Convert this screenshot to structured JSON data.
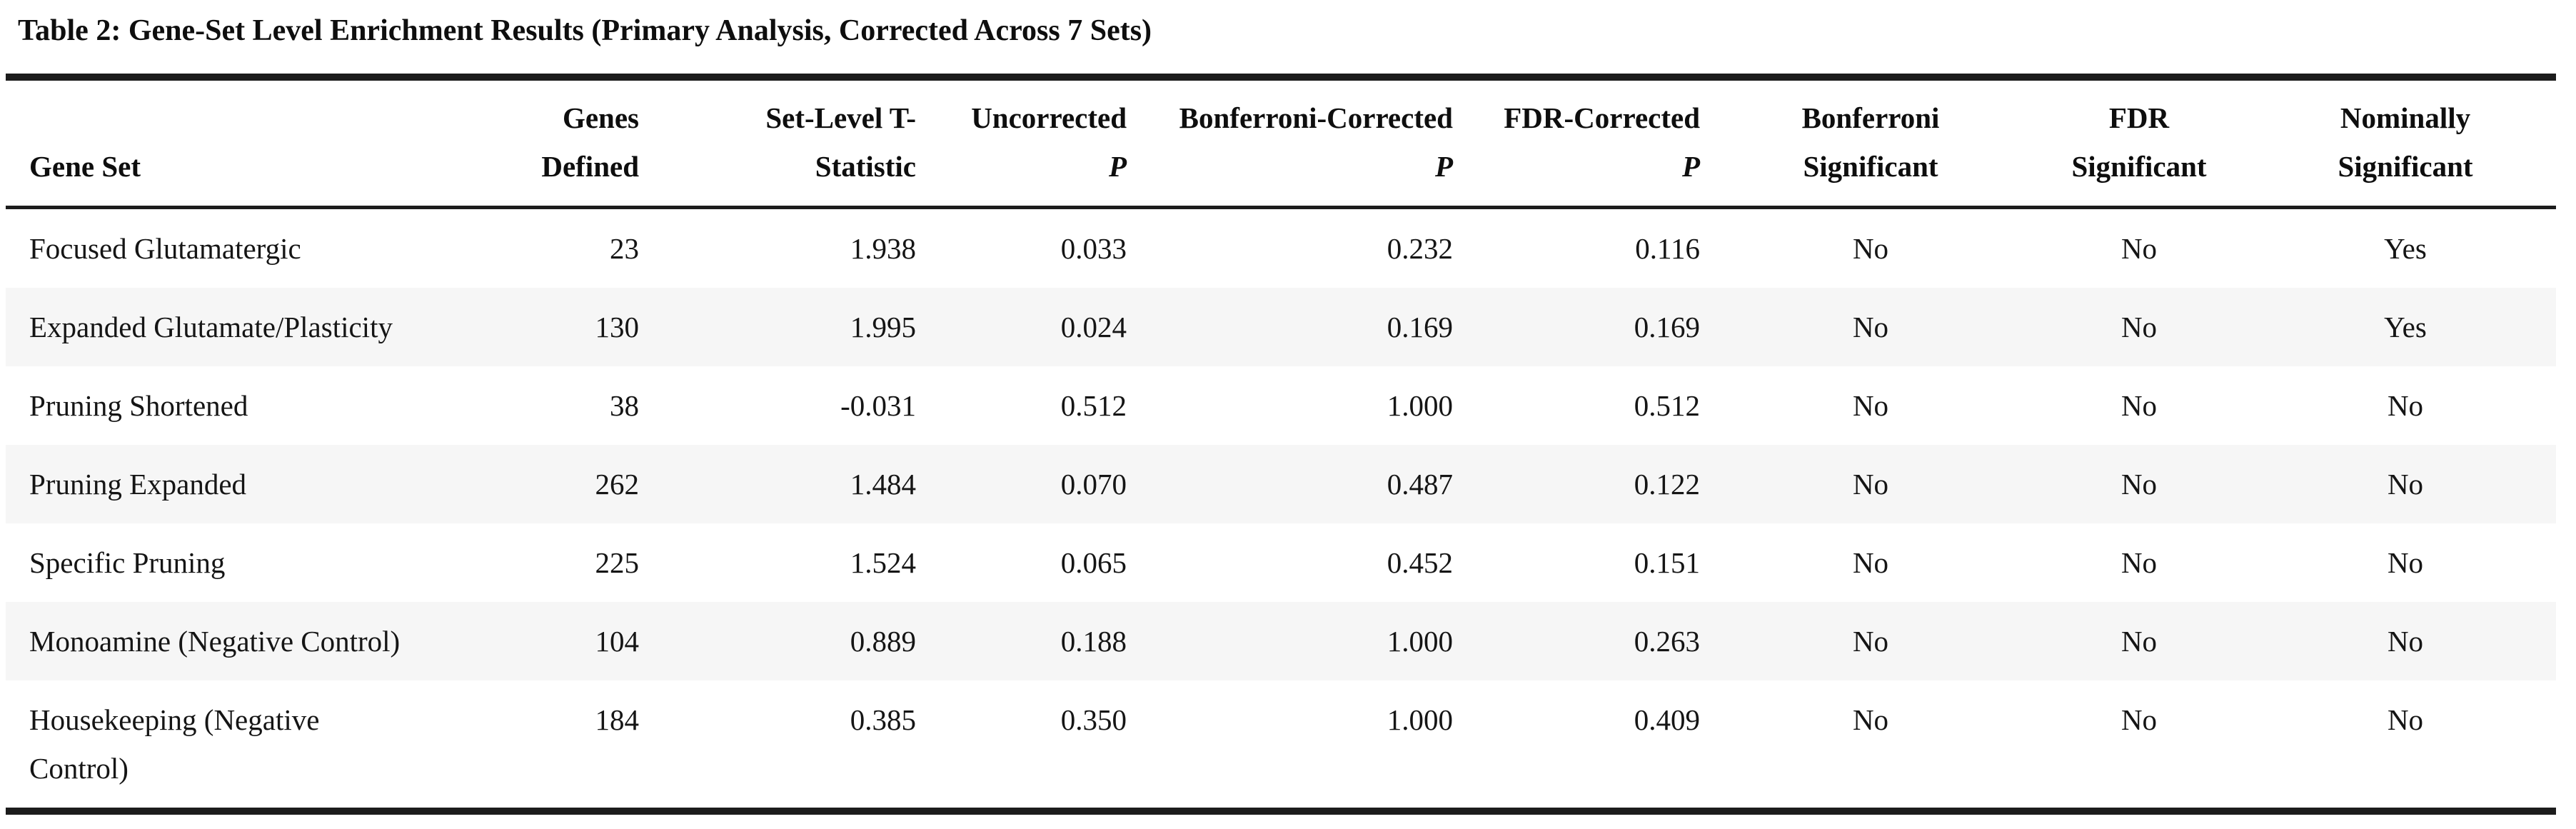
{
  "title": "Table 2: Gene-Set Level Enrichment Results (Primary Analysis, Corrected Across 7 Sets)",
  "table": {
    "columns": [
      {
        "id": "gene-set",
        "header_lines": [
          {
            "text": "Gene Set"
          }
        ]
      },
      {
        "id": "genes-defined",
        "header_lines": [
          {
            "text": "Genes"
          },
          {
            "text": "Defined"
          }
        ]
      },
      {
        "id": "set-level-t-statistic",
        "header_lines": [
          {
            "text": "Set-Level T-"
          },
          {
            "text": "Statistic"
          }
        ]
      },
      {
        "id": "uncorrected-p",
        "header_lines": [
          {
            "text": "Uncorrected"
          },
          {
            "text": "P",
            "italic": true
          }
        ]
      },
      {
        "id": "bonferroni-corrected-p",
        "header_lines": [
          {
            "text": "Bonferroni-Corrected"
          },
          {
            "text": "P",
            "italic": true
          }
        ]
      },
      {
        "id": "fdr-corrected-p",
        "header_lines": [
          {
            "text": "FDR-Corrected"
          },
          {
            "text": "P",
            "italic": true
          }
        ]
      },
      {
        "id": "bonferroni-significant",
        "header_lines": [
          {
            "text": "Bonferroni"
          },
          {
            "text": "Significant"
          }
        ]
      },
      {
        "id": "fdr-significant",
        "header_lines": [
          {
            "text": "FDR"
          },
          {
            "text": "Significant"
          }
        ]
      },
      {
        "id": "nominally-significant",
        "header_lines": [
          {
            "text": "Nominally"
          },
          {
            "text": "Significant"
          }
        ]
      }
    ],
    "rows": [
      [
        "Focused Glutamatergic",
        "23",
        "1.938",
        "0.033",
        "0.232",
        "0.116",
        "No",
        "No",
        "Yes"
      ],
      [
        "Expanded Glutamate/Plasticity",
        "130",
        "1.995",
        "0.024",
        "0.169",
        "0.169",
        "No",
        "No",
        "Yes"
      ],
      [
        "Pruning Shortened",
        "38",
        "-0.031",
        "0.512",
        "1.000",
        "0.512",
        "No",
        "No",
        "No"
      ],
      [
        "Pruning Expanded",
        "262",
        "1.484",
        "0.070",
        "0.487",
        "0.122",
        "No",
        "No",
        "No"
      ],
      [
        "Specific Pruning",
        "225",
        "1.524",
        "0.065",
        "0.452",
        "0.151",
        "No",
        "No",
        "No"
      ],
      [
        "Monoamine (Negative Control)",
        "104",
        "0.889",
        "0.188",
        "1.000",
        "0.263",
        "No",
        "No",
        "No"
      ],
      [
        "Housekeeping (Negative\nControl)",
        "184",
        "0.385",
        "0.350",
        "1.000",
        "0.409",
        "No",
        "No",
        "No"
      ]
    ]
  },
  "colors": {
    "rule": "#1c1c1c",
    "stripe": "#f6f6f6",
    "text": "#151515"
  }
}
